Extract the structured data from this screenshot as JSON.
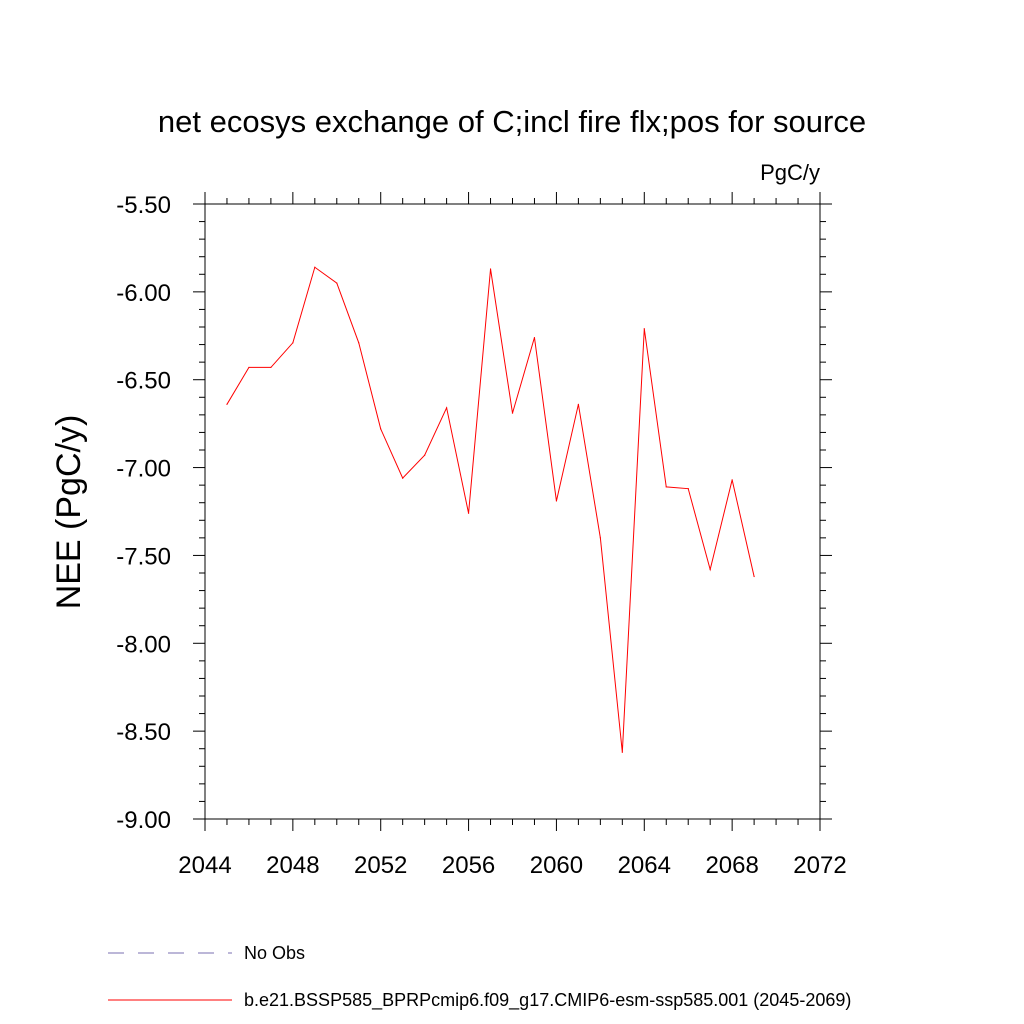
{
  "chart_data": {
    "type": "line",
    "title": "net ecosys exchange of C;incl fire flx;pos for source",
    "units_label": "PgC/y",
    "xlabel": "",
    "ylabel": "NEE  (PgC/y)",
    "xlim": [
      2044,
      2072
    ],
    "ylim": [
      -9.0,
      -5.5
    ],
    "x_ticks": [
      2044,
      2048,
      2052,
      2056,
      2060,
      2064,
      2068,
      2072
    ],
    "x_tick_labels": [
      "2044",
      "2048",
      "2052",
      "2056",
      "2060",
      "2064",
      "2068",
      "2072"
    ],
    "y_ticks": [
      -9.0,
      -8.5,
      -8.0,
      -7.5,
      -7.0,
      -6.5,
      -6.0,
      -5.5
    ],
    "y_tick_labels": [
      "-9.00",
      "-8.50",
      "-8.00",
      "-7.50",
      "-7.00",
      "-6.50",
      "-6.00",
      "-5.50"
    ],
    "grid": false,
    "legend_placement": "bottom-left",
    "series": [
      {
        "name": "b.e21.BSSP585_BPRPcmip6.f09_g17.CMIP6-esm-ssp585.001 (2045-2069)",
        "color": "#ff0000",
        "dash": "solid",
        "x": [
          2045,
          2046,
          2047,
          2048,
          2049,
          2050,
          2051,
          2052,
          2053,
          2054,
          2055,
          2056,
          2057,
          2058,
          2059,
          2060,
          2061,
          2062,
          2063,
          2064,
          2065,
          2066,
          2067,
          2068,
          2069
        ],
        "y": [
          -6.64,
          -6.43,
          -6.43,
          -6.29,
          -5.86,
          -5.95,
          -6.29,
          -6.78,
          -7.06,
          -6.93,
          -6.66,
          -7.26,
          -5.87,
          -6.69,
          -6.26,
          -7.19,
          -6.64,
          -7.4,
          -8.62,
          -6.21,
          -7.11,
          -7.12,
          -7.58,
          -7.07,
          -7.62
        ]
      },
      {
        "name": "No Obs",
        "color": "#7a6fb0",
        "dash": "dashed",
        "x": [],
        "y": []
      }
    ]
  }
}
